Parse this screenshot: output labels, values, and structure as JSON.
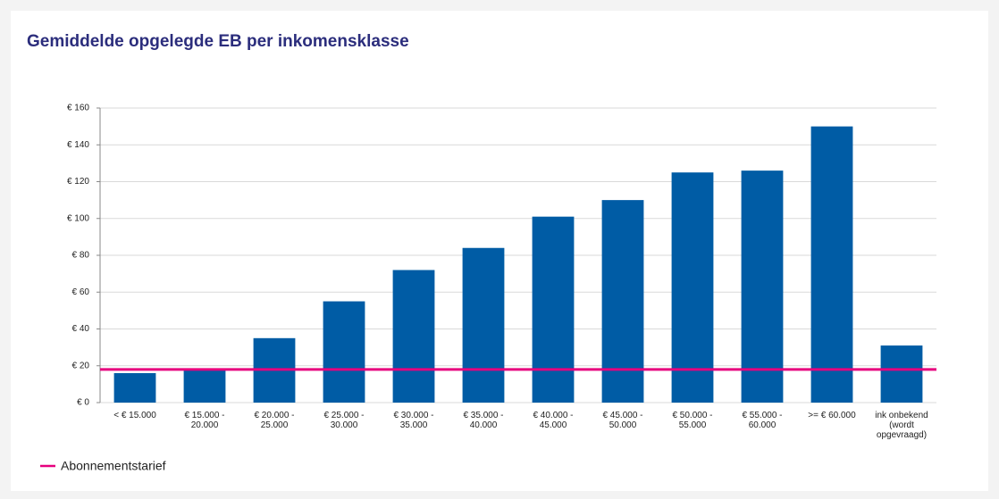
{
  "chart_data": {
    "type": "bar",
    "title": "Gemiddelde opgelegde EB per inkomensklasse",
    "categories": [
      "< € 15.000",
      "€ 15.000 - 20.000",
      "€ 20.000 - 25.000",
      "€ 25.000 - 30.000",
      "€ 30.000 - 35.000",
      "€ 35.000 - 40.000",
      "€ 40.000 - 45.000",
      "€ 45.000 - 50.000",
      "€ 50.000 - 55.000",
      "€ 55.000 - 60.000",
      ">= € 60.000",
      "ink onbekend (wordt opgevraagd)"
    ],
    "values": [
      16,
      18,
      35,
      55,
      72,
      84,
      101,
      110,
      125,
      126,
      150,
      31
    ],
    "color": "#005ca5",
    "ylim": [
      0,
      160
    ],
    "yticks": [
      {
        "value": 0,
        "label": "€ 0"
      },
      {
        "value": 20,
        "label": "€ 20"
      },
      {
        "value": 40,
        "label": "€ 40"
      },
      {
        "value": 60,
        "label": "€ 60"
      },
      {
        "value": 80,
        "label": "€ 80"
      },
      {
        "value": 100,
        "label": "€ 100"
      },
      {
        "value": 120,
        "label": "€ 120"
      },
      {
        "value": 140,
        "label": "€ 140"
      },
      {
        "value": 160,
        "label": "€ 160"
      }
    ],
    "grid": true,
    "reference_line": {
      "name": "Abonnementstarief",
      "value": 18,
      "color": "#e6007e"
    },
    "legend": "bottom-left"
  }
}
